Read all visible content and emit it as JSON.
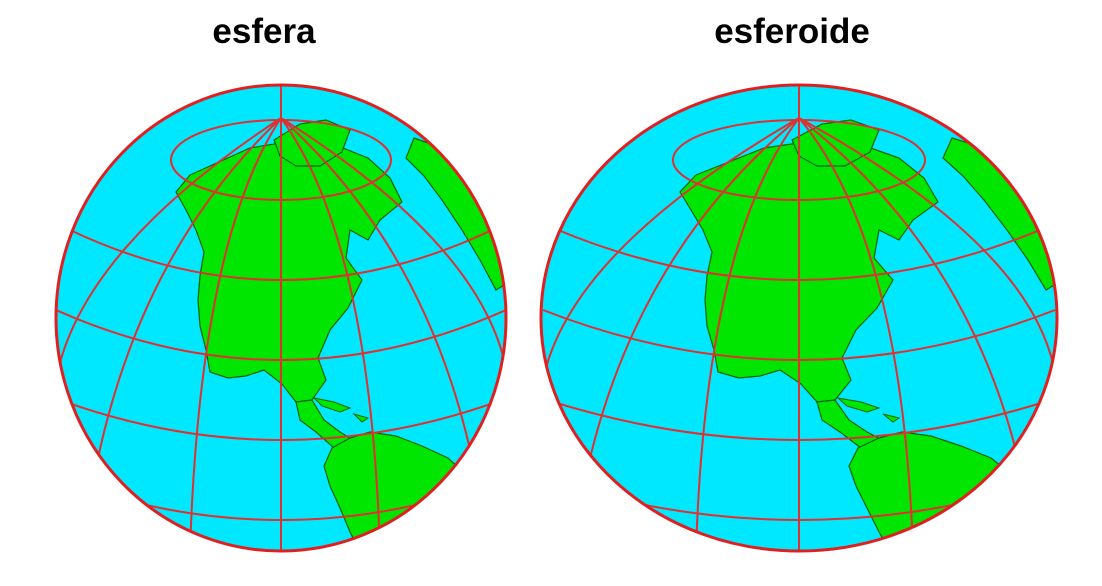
{
  "panels": [
    {
      "title": "esfera"
    },
    {
      "title": "esferoide"
    }
  ],
  "colors": {
    "ocean": "#00e8ff",
    "land": "#00e600",
    "graticule": "#e03030",
    "outline": "#e02020",
    "coast": "#006400",
    "background": "#ffffff"
  }
}
